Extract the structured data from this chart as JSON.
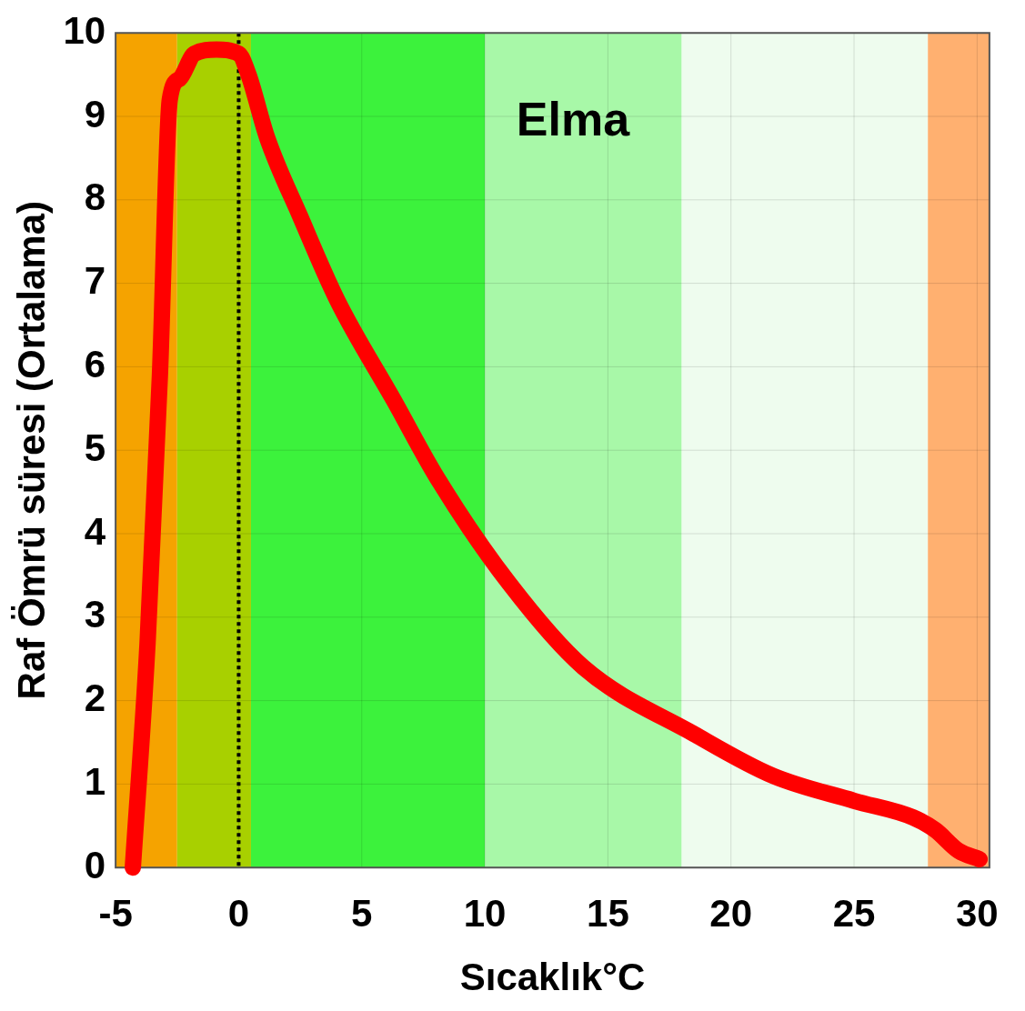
{
  "chart_data": {
    "type": "line",
    "xlabel": "Sıcaklık°C",
    "ylabel": "Raf Ömrü süresi (Ortalama)",
    "annotations": [
      "Elma"
    ],
    "xlim": [
      -5,
      30.5
    ],
    "xticks": [
      -5,
      0,
      5,
      10,
      15,
      20,
      25,
      30
    ],
    "ylim": [
      0,
      10
    ],
    "yticks": [
      0,
      1,
      2,
      3,
      4,
      5,
      6,
      7,
      8,
      9,
      10
    ],
    "grid": true,
    "legend": false,
    "marker": "none",
    "line_style": "solid",
    "ref_lines": [
      {
        "axis": "x",
        "value": 0,
        "color": "#000000",
        "line_style": "dotted"
      }
    ],
    "bands": [
      {
        "axis": "x",
        "from": -5,
        "to": -2.5,
        "color": "#f5a300"
      },
      {
        "axis": "x",
        "from": -2.5,
        "to": 0.5,
        "color": "#a8d000"
      },
      {
        "axis": "x",
        "from": 0.5,
        "to": 10,
        "color": "#3cf23c"
      },
      {
        "axis": "x",
        "from": 10,
        "to": 18,
        "color": "#a8f8a8"
      },
      {
        "axis": "x",
        "from": 18,
        "to": 28,
        "color": "#eefcee"
      },
      {
        "axis": "x",
        "from": 28,
        "to": 30.5,
        "color": "#ffb070"
      }
    ],
    "series": [
      {
        "color": "#ff0000",
        "x": [
          -4.3,
          -3.7,
          -3.2,
          -2.8,
          -2.4,
          -1.8,
          -0.9,
          0,
          0.4,
          1.15,
          2.5,
          4,
          6.3,
          8.1,
          11,
          14,
          18.5,
          21.7,
          25,
          27.4,
          28.3,
          29.25,
          30.1
        ],
        "values": [
          0,
          2.7,
          5.9,
          9.2,
          9.45,
          9.75,
          9.8,
          9.75,
          9.5,
          8.75,
          7.8,
          6.8,
          5.6,
          4.65,
          3.4,
          2.4,
          1.6,
          1.1,
          0.8,
          0.6,
          0.45,
          0.2,
          0.1
        ]
      }
    ]
  }
}
